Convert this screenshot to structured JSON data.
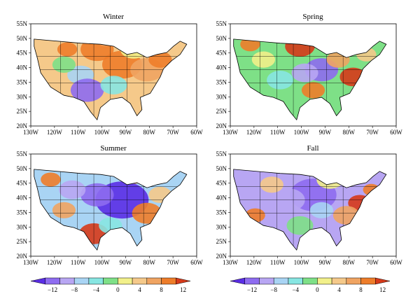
{
  "panels": [
    {
      "title": "Winter",
      "pattern": "winter"
    },
    {
      "title": "Spring",
      "pattern": "spring"
    },
    {
      "title": "Summer",
      "pattern": "summer"
    },
    {
      "title": "Fall",
      "pattern": "fall"
    }
  ],
  "lat_labels": [
    "55N",
    "50N",
    "45N",
    "40N",
    "35N",
    "30N",
    "25N",
    "20N"
  ],
  "lon_labels": [
    "130W",
    "120W",
    "110W",
    "100W",
    "90W",
    "80W",
    "70W",
    "60W"
  ],
  "colorbar": {
    "labels": [
      "−12",
      "−8",
      "−4",
      "0",
      "4",
      "8",
      "12"
    ],
    "colors": [
      "#5a2de6",
      "#8e6cf0",
      "#b8a6f3",
      "#a9d4f4",
      "#87e6e2",
      "#7ee087",
      "#f2f08a",
      "#f5c98a",
      "#f0a462",
      "#ee7d2a",
      "#d63a1a"
    ]
  },
  "colors": {
    "land_outline": "#000000",
    "ocean": "#ffffff"
  }
}
